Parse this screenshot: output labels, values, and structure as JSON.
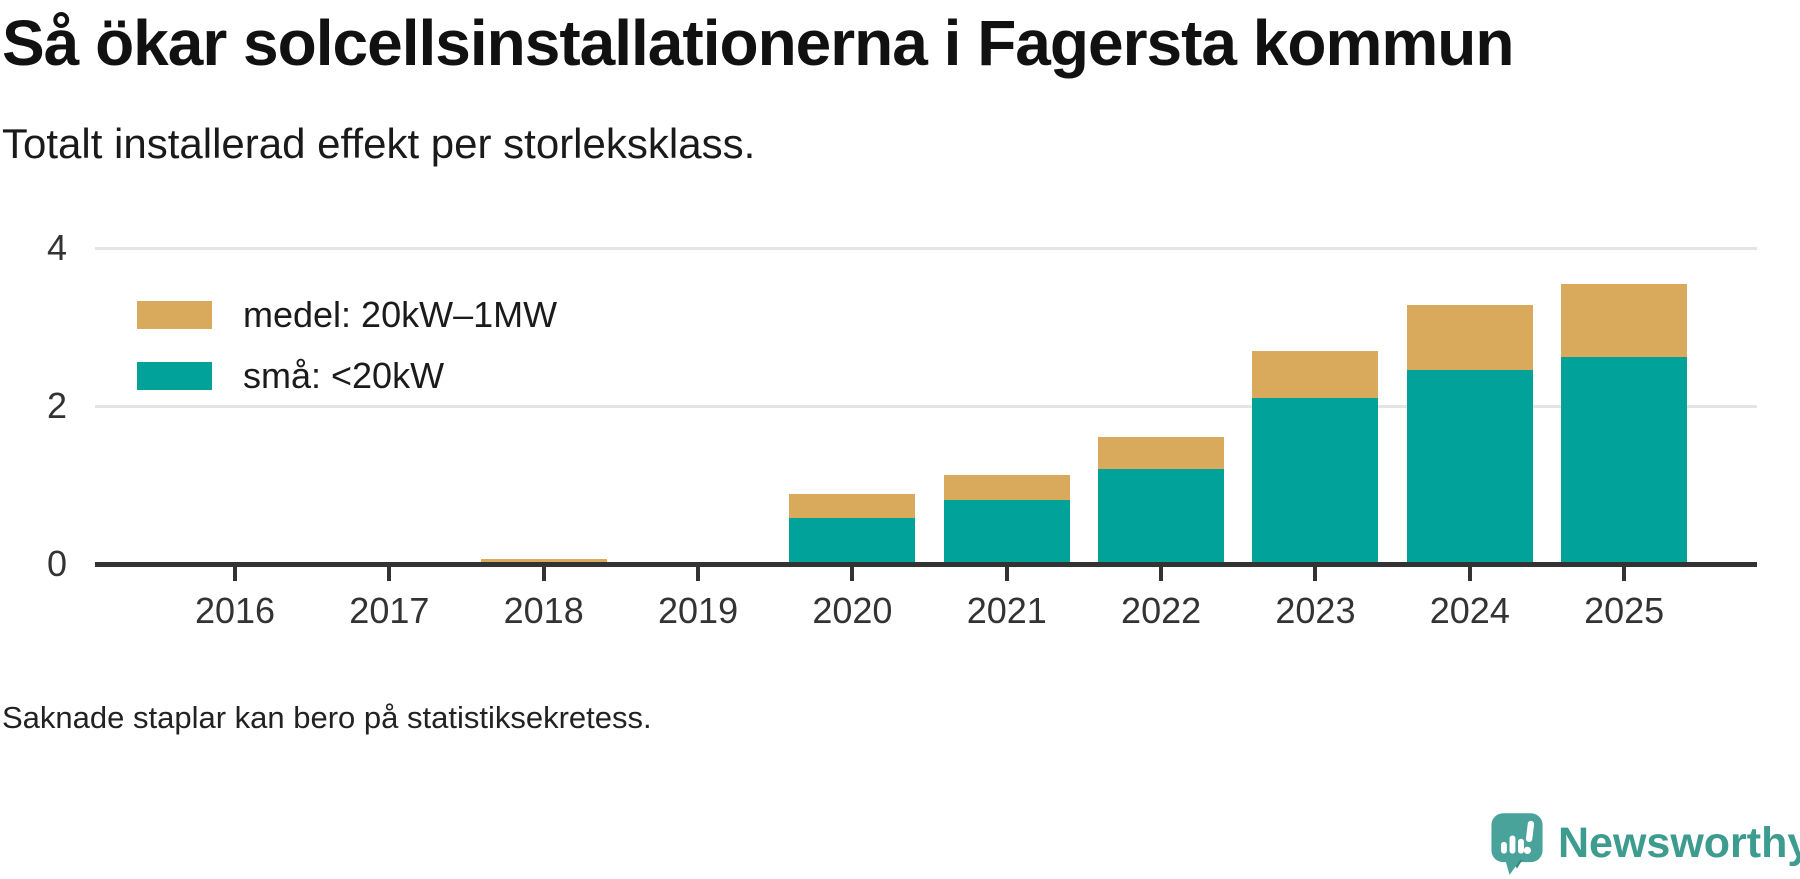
{
  "title": "Så ökar solcellsinstallationerna i Fagersta kommun",
  "subtitle": "Totalt installerad effekt per storleksklass.",
  "footnote": "Saknade staplar kan bero på statistiksekretess.",
  "brand": {
    "name": "Newsworthy"
  },
  "colors": {
    "sma": "#00a29a",
    "medel": "#d9aa5c",
    "axis": "#333333",
    "gridline": "#e4e4e4",
    "brand_text": "#3d9b8f",
    "brand_mark": "#4aa39a",
    "brand_mark_dark": "#2e8a82"
  },
  "legend": {
    "items": [
      {
        "label": "medel: 20kW–1MW",
        "color": "#d9aa5c",
        "key": "medel"
      },
      {
        "label": "små: <20kW",
        "color": "#00a29a",
        "key": "sma"
      }
    ]
  },
  "chart_data": {
    "type": "bar",
    "stacked": true,
    "title": "Så ökar solcellsinstallationerna i Fagersta kommun",
    "subtitle": "Totalt installerad effekt per storleksklass.",
    "categories": [
      "2016",
      "2017",
      "2018",
      "2019",
      "2020",
      "2021",
      "2022",
      "2023",
      "2024",
      "2025"
    ],
    "series": [
      {
        "name": "små: <20kW",
        "color": "#00a29a",
        "values": [
          0,
          0,
          0,
          0,
          0.56,
          0.78,
          1.18,
          2.08,
          2.43,
          2.6
        ]
      },
      {
        "name": "medel: 20kW–1MW",
        "color": "#d9aa5c",
        "values": [
          0,
          0,
          0.04,
          0,
          0.31,
          0.32,
          0.4,
          0.59,
          0.82,
          0.92
        ]
      }
    ],
    "totals": [
      0,
      0,
      0.04,
      0,
      0.87,
      1.1,
      1.58,
      2.67,
      3.25,
      3.52
    ],
    "ylabel": "",
    "xlabel": "",
    "ylim": [
      0,
      4.2
    ],
    "yticks": [
      0,
      2,
      4
    ],
    "grid": "horizontal",
    "legend_position": "top-left"
  }
}
